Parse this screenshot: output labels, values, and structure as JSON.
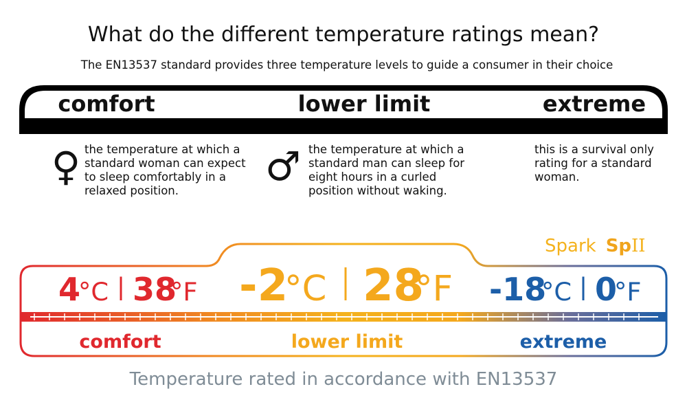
{
  "header": {
    "title": "What do the different temperature ratings mean?",
    "subtitle": "The EN13537 standard provides three temperature levels to guide a consumer in their choice"
  },
  "levels": [
    {
      "heading": "comfort",
      "symbol": "♀",
      "description": [
        "the temperature at which a",
        "standard woman can expect",
        "to sleep comfortably in a",
        "relaxed position."
      ]
    },
    {
      "heading": "lower limit",
      "symbol": "♂",
      "description": [
        "the temperature at which a",
        "standard man can sleep for",
        "eight hours in a curled",
        "position without waking."
      ]
    },
    {
      "heading": "extreme",
      "description": [
        "this is a survival only",
        "rating for a standard",
        "woman."
      ]
    }
  ],
  "brand": {
    "name": "Spark",
    "code": "Sp",
    "suffix": "II"
  },
  "ratings": [
    {
      "celsius": "4",
      "c_unit": "°C",
      "fahrenheit": "38",
      "f_unit": "°F",
      "label": "comfort",
      "color": "#e0282e"
    },
    {
      "celsius": "-2",
      "c_unit": "°C",
      "fahrenheit": "28",
      "f_unit": "°F",
      "label": "lower limit",
      "color": "#f4a81d"
    },
    {
      "celsius": "-18",
      "c_unit": "°C",
      "fahrenheit": "0",
      "f_unit": "°F",
      "label": "extreme",
      "color": "#1c5ea8"
    }
  ],
  "footer": "Temperature rated in accordance with EN13537"
}
